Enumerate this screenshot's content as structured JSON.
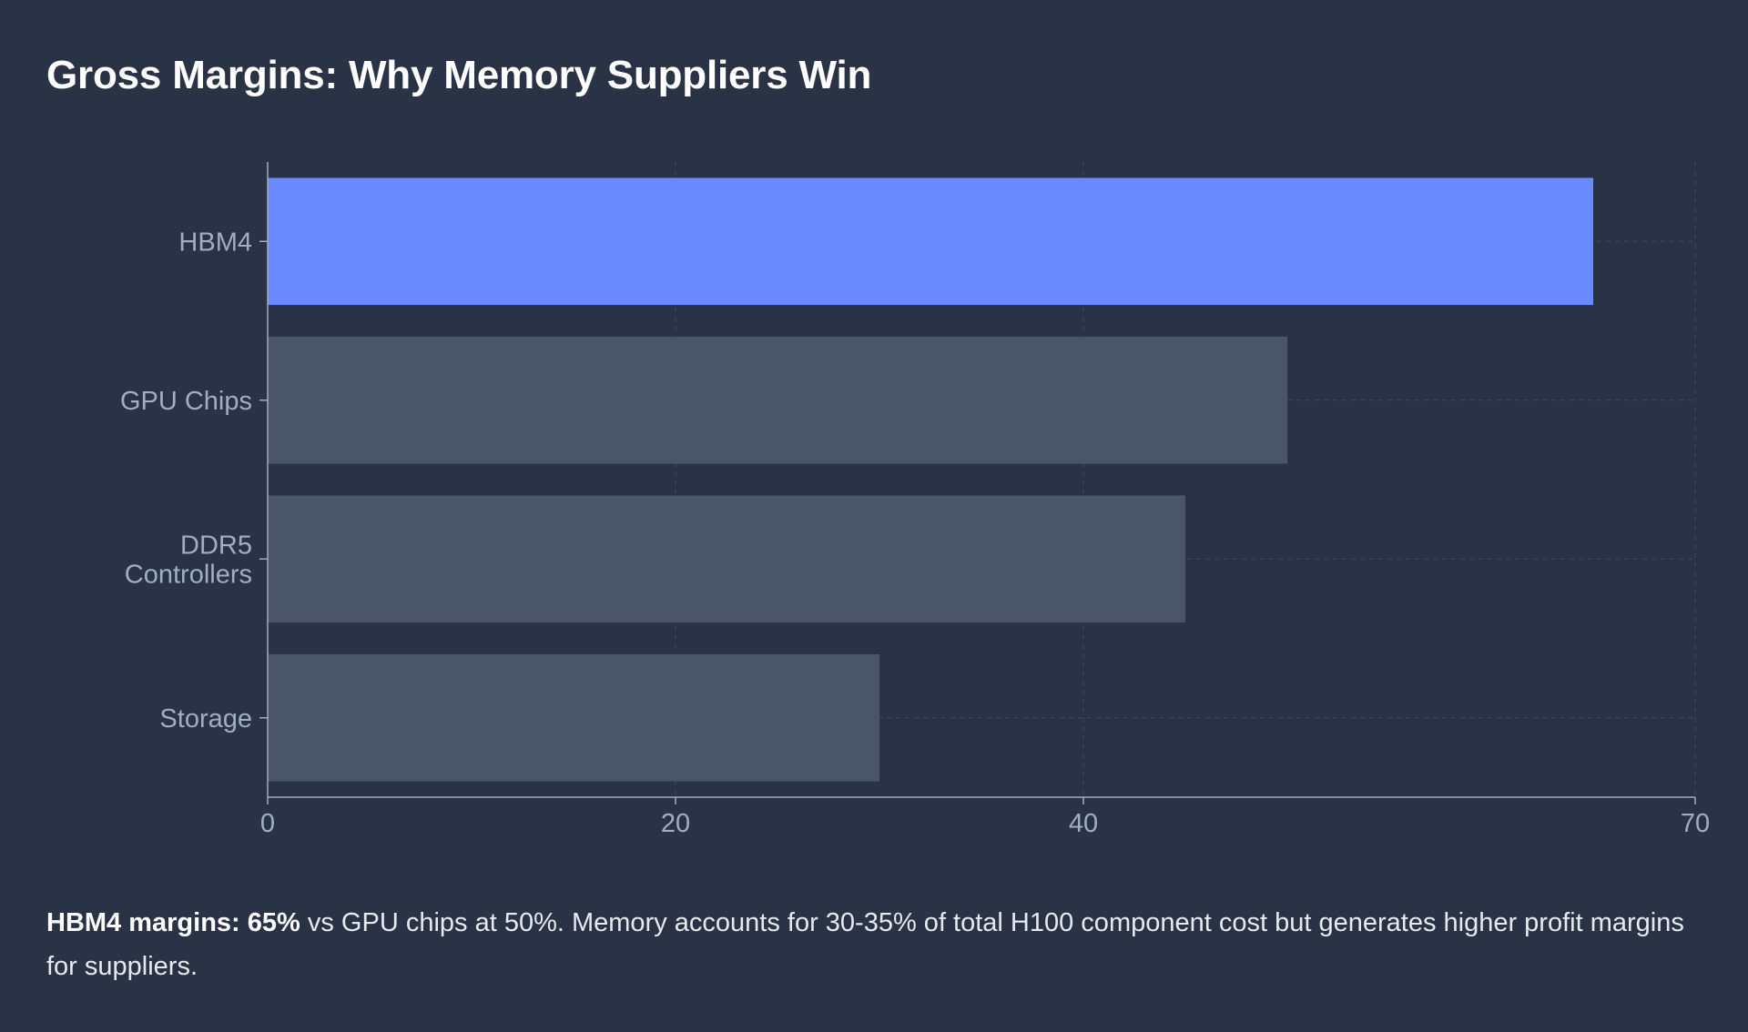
{
  "title": "Gross Margins: Why Memory Suppliers Win",
  "colors": {
    "background": "#2a3345",
    "highlight_bar": "#6b8aff",
    "default_bar": "#4a5568",
    "axis": "#a0aec0",
    "tick_label": "#a0aec0",
    "grid": "#3d4759"
  },
  "chart_data": {
    "type": "bar",
    "orientation": "horizontal",
    "categories": [
      "HBM4",
      "GPU Chips",
      "DDR5 Controllers",
      "Storage"
    ],
    "category_lines": [
      [
        "HBM4"
      ],
      [
        "GPU Chips"
      ],
      [
        "DDR5",
        "Controllers"
      ],
      [
        "Storage"
      ]
    ],
    "values": [
      65,
      50,
      45,
      30
    ],
    "highlight_index": 0,
    "xlim": [
      0,
      70
    ],
    "x_ticks": [
      0,
      20,
      40,
      70
    ],
    "grid": true,
    "title": "Gross Margins: Why Memory Suppliers Win",
    "xlabel": "",
    "ylabel": ""
  },
  "caption": {
    "bold": "HBM4 margins: 65%",
    "text": " vs GPU chips at 50%. Memory accounts for 30-35% of total H100 component cost but generates higher profit margins for suppliers."
  }
}
